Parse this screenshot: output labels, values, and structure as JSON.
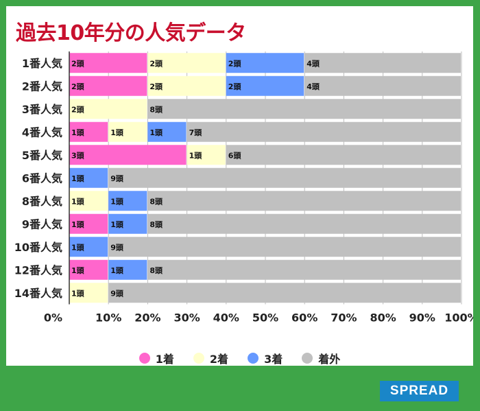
{
  "brand": "SPREAD",
  "legend": [
    {
      "label": "1着",
      "color": "#ff66cc"
    },
    {
      "label": "2着",
      "color": "#ffffcc"
    },
    {
      "label": "3着",
      "color": "#6699ff"
    },
    {
      "label": "着外",
      "color": "#c0c0c0"
    }
  ],
  "chart_data": {
    "type": "bar",
    "orientation": "horizontal",
    "stacked": true,
    "title": "過去10年分の人気データ",
    "categories": [
      "1番人気",
      "2番人気",
      "3番人気",
      "4番人気",
      "5番人気",
      "6番人気",
      "8番人気",
      "9番人気",
      "10番人気",
      "12番人気",
      "14番人気"
    ],
    "series": [
      {
        "name": "1着",
        "color": "#ff66cc",
        "values": [
          2,
          2,
          0,
          1,
          3,
          0,
          0,
          1,
          0,
          1,
          0
        ],
        "labels": [
          "2頭",
          "2頭",
          "",
          "1頭",
          "3頭",
          "",
          "",
          "1頭",
          "",
          "1頭",
          ""
        ]
      },
      {
        "name": "2着",
        "color": "#ffffcc",
        "values": [
          2,
          2,
          2,
          1,
          1,
          0,
          1,
          0,
          0,
          0,
          1
        ],
        "labels": [
          "2頭",
          "2頭",
          "2頭",
          "1頭",
          "1頭",
          "",
          "1頭",
          "",
          "",
          "",
          "1頭"
        ]
      },
      {
        "name": "3着",
        "color": "#6699ff",
        "values": [
          2,
          2,
          0,
          1,
          0,
          1,
          1,
          1,
          1,
          1,
          0
        ],
        "labels": [
          "2頭",
          "2頭",
          "",
          "1頭",
          "",
          "1頭",
          "1頭",
          "1頭",
          "1頭",
          "1頭",
          ""
        ]
      },
      {
        "name": "着外",
        "color": "#c0c0c0",
        "values": [
          4,
          4,
          8,
          7,
          6,
          9,
          8,
          8,
          9,
          8,
          9
        ],
        "labels": [
          "4頭",
          "4頭",
          "8頭",
          "7頭",
          "6頭",
          "9頭",
          "8頭",
          "8頭",
          "9頭",
          "8頭",
          "9頭"
        ]
      }
    ],
    "x_ticks": [
      "0%",
      "10%",
      "20%",
      "30%",
      "40%",
      "50%",
      "60%",
      "70%",
      "80%",
      "90%",
      "100%"
    ],
    "xlim": [
      0,
      100
    ],
    "grid": true
  }
}
